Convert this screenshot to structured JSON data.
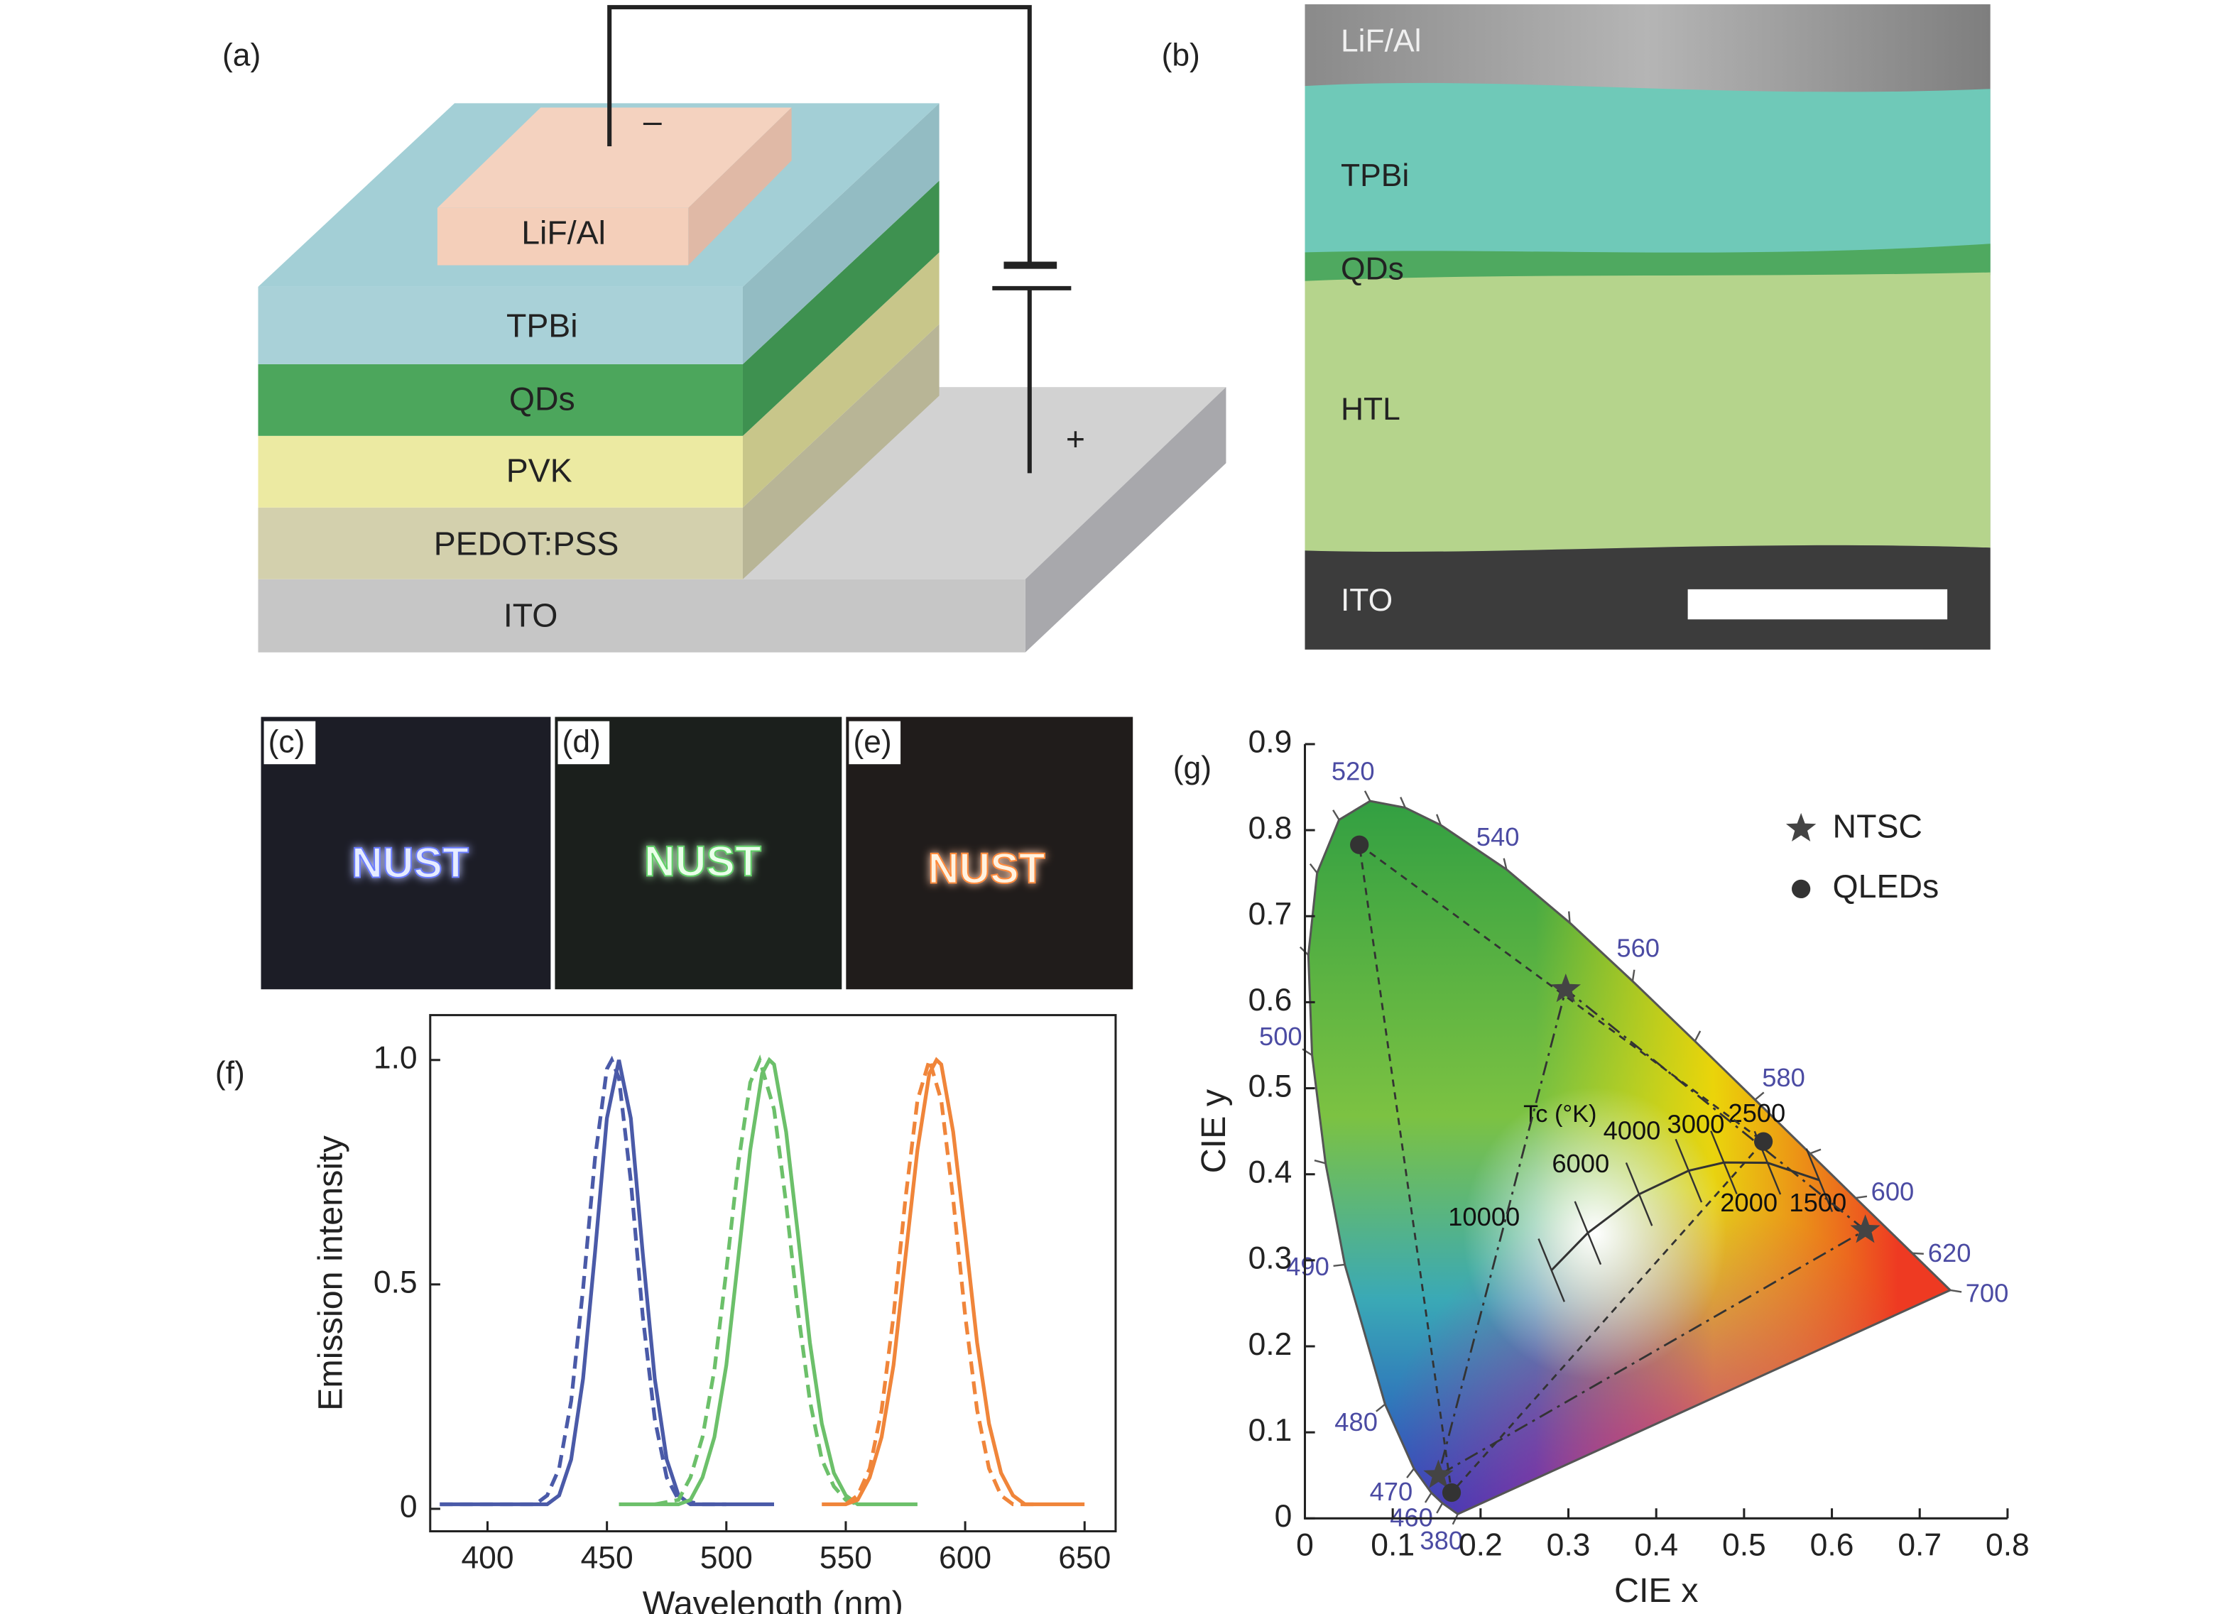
{
  "panel_a": {
    "label": "(a)",
    "layers": [
      "LiF/Al",
      "TPBi",
      "QDs",
      "PVK",
      "PEDOT:PSS",
      "ITO"
    ],
    "minus": "–",
    "plus": "+"
  },
  "panel_b": {
    "label": "(b)",
    "layers": [
      "LiF/Al",
      "TPBi",
      "QDs",
      "HTL",
      "ITO"
    ]
  },
  "photos": [
    {
      "label": "(c)",
      "text": "NUST"
    },
    {
      "label": "(d)",
      "text": "NUST"
    },
    {
      "label": "(e)",
      "text": "NUST"
    }
  ],
  "chart_data": [
    {
      "type": "line",
      "panel_label": "(f)",
      "x_label": "Wavelength (nm)",
      "y_label": "Emission intensity",
      "xlim": [
        376,
        663
      ],
      "ylim": [
        -0.05,
        1.1
      ],
      "xticks": [
        400,
        450,
        500,
        550,
        600,
        650
      ],
      "yticks": [
        0,
        0.5,
        {
          "value": 1,
          "label": "1.0"
        }
      ],
      "series": [
        {
          "color": "#4a5aa8",
          "line_style": "solid",
          "x": [
            380,
            390,
            400,
            410,
            420,
            425,
            430,
            435,
            440,
            445,
            450,
            455,
            460,
            465,
            470,
            475,
            480,
            485,
            490,
            500,
            510,
            520
          ],
          "values": [
            0.01,
            0.01,
            0.01,
            0.01,
            0.01,
            0.01,
            0.03,
            0.11,
            0.29,
            0.57,
            0.87,
            1,
            0.87,
            0.57,
            0.29,
            0.11,
            0.03,
            0.01,
            0.01,
            0.01,
            0.01,
            0.01
          ]
        },
        {
          "color": "#4a5aa8",
          "line_style": "dashed",
          "x": [
            380,
            400,
            420,
            425,
            430,
            435,
            440,
            445,
            450,
            452,
            455,
            460,
            465,
            470,
            475,
            480,
            490,
            500
          ],
          "values": [
            0.01,
            0.01,
            0.01,
            0.03,
            0.09,
            0.24,
            0.49,
            0.78,
            0.98,
            1,
            0.96,
            0.73,
            0.43,
            0.2,
            0.07,
            0.02,
            0.01,
            0.01
          ]
        },
        {
          "color": "#6cc06a",
          "line_style": "solid",
          "x": [
            455,
            470,
            480,
            485,
            490,
            495,
            500,
            505,
            510,
            515,
            518,
            520,
            525,
            530,
            535,
            540,
            545,
            550,
            555,
            560,
            580
          ],
          "values": [
            0.01,
            0.01,
            0.01,
            0.02,
            0.07,
            0.16,
            0.32,
            0.56,
            0.8,
            0.97,
            1,
            0.99,
            0.84,
            0.61,
            0.37,
            0.19,
            0.08,
            0.03,
            0.01,
            0.01,
            0.01
          ]
        },
        {
          "color": "#6cc06a",
          "line_style": "dashed",
          "x": [
            470,
            480,
            485,
            490,
            495,
            500,
            505,
            510,
            514,
            520,
            525,
            530,
            535,
            540,
            545,
            550,
            555
          ],
          "values": [
            0.01,
            0.02,
            0.07,
            0.16,
            0.31,
            0.53,
            0.77,
            0.95,
            1,
            0.89,
            0.68,
            0.44,
            0.24,
            0.11,
            0.05,
            0.02,
            0.01
          ]
        },
        {
          "color": "#f0853a",
          "line_style": "solid",
          "x": [
            540,
            550,
            555,
            560,
            565,
            570,
            575,
            580,
            585,
            588,
            590,
            595,
            600,
            605,
            610,
            615,
            620,
            625,
            630,
            650
          ],
          "values": [
            0.01,
            0.01,
            0.02,
            0.07,
            0.16,
            0.32,
            0.56,
            0.8,
            0.97,
            1,
            0.99,
            0.84,
            0.61,
            0.37,
            0.19,
            0.08,
            0.03,
            0.01,
            0.01,
            0.01
          ]
        },
        {
          "color": "#f0853a",
          "line_style": "dashed",
          "x": [
            550,
            555,
            560,
            565,
            570,
            575,
            580,
            585,
            590,
            595,
            600,
            605,
            610,
            615,
            620,
            630
          ],
          "values": [
            0.01,
            0.03,
            0.09,
            0.22,
            0.43,
            0.69,
            0.91,
            1,
            0.91,
            0.69,
            0.43,
            0.22,
            0.09,
            0.03,
            0.01,
            0.01
          ]
        }
      ]
    },
    {
      "type": "scatter",
      "panel_label": "(g)",
      "x_label": "CIE x",
      "y_label": "CIE y",
      "xlim": [
        0,
        0.8
      ],
      "ylim": [
        0,
        0.9
      ],
      "xticks": [
        0,
        0.1,
        0.2,
        0.3,
        0.4,
        0.5,
        0.6,
        0.7,
        0.8
      ],
      "yticks": [
        0,
        0.1,
        0.2,
        0.3,
        0.4,
        0.5,
        0.6,
        0.7,
        0.8,
        0.9
      ],
      "legend": "upper right",
      "series": [
        {
          "name": "NTSC",
          "marker": "star",
          "color": "#444444",
          "x": [
            0.638,
            0.297,
            0.152
          ],
          "values": [
            0.335,
            0.615,
            0.05
          ]
        },
        {
          "name": "QLEDs",
          "marker": "circle",
          "color": "#333333",
          "x": [
            0.062,
            0.522,
            0.167
          ],
          "values": [
            0.783,
            0.438,
            0.03
          ]
        }
      ],
      "spectral_locus": {
        "x": [
          0.1741,
          0.1566,
          0.144,
          0.1241,
          0.0913,
          0.0454,
          0.0235,
          0.0082,
          0.0039,
          0.0139,
          0.0389,
          0.0743,
          0.1142,
          0.1547,
          0.2296,
          0.3016,
          0.3731,
          0.4441,
          0.5125,
          0.5752,
          0.627,
          0.6915,
          0.7347
        ],
        "values": [
          0.005,
          0.0177,
          0.0297,
          0.0578,
          0.1327,
          0.295,
          0.4127,
          0.5384,
          0.6548,
          0.7502,
          0.812,
          0.8338,
          0.8262,
          0.8059,
          0.7543,
          0.6923,
          0.6245,
          0.5547,
          0.4866,
          0.4242,
          0.3725,
          0.3083,
          0.2653
        ],
        "labels": [
          380,
          null,
          460,
          470,
          480,
          490,
          null,
          500,
          null,
          null,
          null,
          520,
          null,
          null,
          540,
          null,
          560,
          null,
          580,
          null,
          600,
          620,
          700
        ]
      },
      "planckian_locus": {
        "title": "Tc (°K)",
        "x": [
          0.2807,
          0.3221,
          0.3805,
          0.4369,
          0.477,
          0.5267,
          0.5857
        ],
        "values": [
          0.2884,
          0.3318,
          0.3768,
          0.4041,
          0.4137,
          0.4133,
          0.3931
        ],
        "labels": [
          10000,
          6000,
          4000,
          3000,
          2500,
          2000,
          1500
        ]
      }
    }
  ]
}
